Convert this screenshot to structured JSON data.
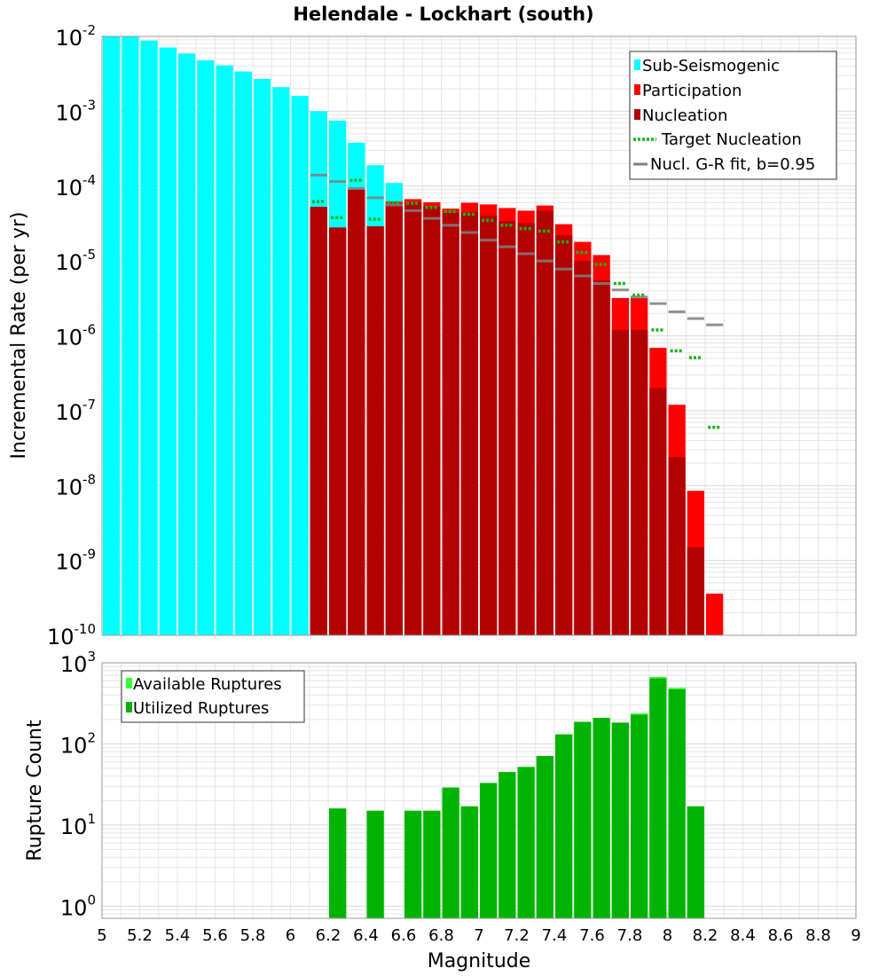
{
  "title": "Helendale - Lockhart (south)",
  "colors": {
    "sub_seismogenic": "#00ffff",
    "participation": "#ff0000",
    "nucleation": "#b30000",
    "target_nucleation": "#17b417",
    "gr_fit": "#7f7f7f",
    "available": "#33ff33",
    "utilized": "#00b300",
    "grid": "#e6e6e6"
  },
  "chart_data": [
    {
      "type": "bar",
      "title": "Helendale - Lockhart (south)",
      "ylabel": "Incremental Rate (per yr)",
      "xlabel": "",
      "xlim": [
        5,
        9
      ],
      "ylim_exp": [
        -10,
        -2
      ],
      "yscale": "log",
      "y_tick_exponents": [
        -10,
        -9,
        -8,
        -7,
        -6,
        -5,
        -4,
        -3,
        -2
      ],
      "legend_position": "top-right",
      "legend": [
        "Sub-Seismogenic",
        "Participation",
        "Nucleation",
        "Target Nucleation",
        "Nucl. G-R fit, b=0.95"
      ],
      "bin_width": 0.1,
      "series": [
        {
          "name": "Sub-Seismogenic",
          "style": "bar",
          "x": [
            5.05,
            5.15,
            5.25,
            5.35,
            5.45,
            5.55,
            5.65,
            5.75,
            5.85,
            5.95,
            6.05,
            6.15,
            6.25,
            6.35,
            6.45,
            6.55
          ],
          "values": [
            0.01,
            0.0099,
            0.0088,
            0.0071,
            0.0059,
            0.0048,
            0.0041,
            0.0034,
            0.0027,
            0.0021,
            0.0016,
            0.001,
            0.00075,
            0.00038,
            0.00019,
            0.00011
          ]
        },
        {
          "name": "Participation",
          "style": "bar",
          "x": [
            6.15,
            6.25,
            6.35,
            6.45,
            6.55,
            6.65,
            6.75,
            6.85,
            6.95,
            7.05,
            7.15,
            7.25,
            7.35,
            7.45,
            7.55,
            7.65,
            7.75,
            7.85,
            7.95,
            8.05,
            8.15,
            8.25
          ],
          "values": [
            5.3e-05,
            2.8e-05,
            9e-05,
            2.9e-05,
            6.2e-05,
            6.7e-05,
            6.1e-05,
            5e-05,
            6e-05,
            5.7e-05,
            5.1e-05,
            4.7e-05,
            5.5e-05,
            3.1e-05,
            1.8e-05,
            1.2e-05,
            3.2e-06,
            3.2e-06,
            6.9e-07,
            1.2e-07,
            8.5e-09,
            3.6e-10
          ]
        },
        {
          "name": "Nucleation",
          "style": "bar",
          "x": [
            6.15,
            6.25,
            6.35,
            6.45,
            6.55,
            6.65,
            6.75,
            6.85,
            6.95,
            7.05,
            7.15,
            7.25,
            7.35,
            7.45,
            7.55,
            7.65,
            7.75,
            7.85,
            7.95,
            8.05,
            8.15
          ],
          "values": [
            5.3e-05,
            2.8e-05,
            9e-05,
            2.9e-05,
            5.6e-05,
            6.1e-05,
            5.3e-05,
            4.4e-05,
            4.5e-05,
            4e-05,
            3.4e-05,
            3.2e-05,
            4.7e-05,
            2.2e-05,
            1e-05,
            5.5e-06,
            1.2e-06,
            1.2e-06,
            2e-07,
            2.4e-08,
            1.5e-09
          ]
        },
        {
          "name": "Target Nucleation",
          "style": "dotted-step",
          "x": [
            6.15,
            6.25,
            6.35,
            6.45,
            6.55,
            6.65,
            6.75,
            6.85,
            6.95,
            7.05,
            7.15,
            7.25,
            7.35,
            7.45,
            7.55,
            7.65,
            7.75,
            7.85,
            7.95,
            8.05,
            8.15,
            8.25
          ],
          "values": [
            6.2e-05,
            3.8e-05,
            0.00012,
            3.6e-05,
            6e-05,
            5.9e-05,
            5.2e-05,
            4.6e-05,
            4.2e-05,
            3.5e-05,
            3e-05,
            2.7e-05,
            2.5e-05,
            1.8e-05,
            1.3e-05,
            9e-06,
            5e-06,
            3.5e-06,
            1.2e-06,
            6.3e-07,
            5.1e-07,
            6e-08
          ]
        },
        {
          "name": "Nucl. G-R fit, b=0.95",
          "style": "step",
          "x": [
            6.15,
            6.25,
            6.35,
            6.45,
            6.55,
            6.65,
            6.75,
            6.85,
            6.95,
            7.05,
            7.15,
            7.25,
            7.35,
            7.45,
            7.55,
            7.65,
            7.75,
            7.85,
            7.95,
            8.05,
            8.15,
            8.25
          ],
          "values": [
            0.00014,
            0.000115,
            9.3e-05,
            7e-05,
            5.6e-05,
            4.7e-05,
            3.7e-05,
            3e-05,
            2.4e-05,
            1.9e-05,
            1.55e-05,
            1.25e-05,
            1e-05,
            7.8e-06,
            6.3e-06,
            5e-06,
            4.1e-06,
            3.3e-06,
            2.7e-06,
            2.1e-06,
            1.7e-06,
            1.4e-06
          ]
        }
      ]
    },
    {
      "type": "bar",
      "title": "",
      "xlabel": "Magnitude",
      "ylabel": "Rupture Count",
      "xlim": [
        5,
        9
      ],
      "ylim_exp": [
        -0.15,
        3
      ],
      "yscale": "log",
      "y_tick_exponents": [
        0,
        1,
        2,
        3
      ],
      "x_ticks": [
        "5",
        "5.2",
        "5.4",
        "5.6",
        "5.8",
        "6",
        "6.2",
        "6.4",
        "6.6",
        "6.8",
        "7",
        "7.2",
        "7.4",
        "7.6",
        "7.8",
        "8",
        "8.2",
        "8.4",
        "8.6",
        "8.8",
        "9"
      ],
      "legend_position": "top-left",
      "legend": [
        "Available Ruptures",
        "Utilized Ruptures"
      ],
      "bin_width": 0.1,
      "series": [
        {
          "name": "Available Ruptures",
          "x": [
            6.25,
            6.45,
            6.65,
            6.75,
            6.85,
            6.95,
            7.05,
            7.15,
            7.25,
            7.35,
            7.45,
            7.55,
            7.65,
            7.75,
            7.85,
            7.95,
            8.05,
            8.15
          ],
          "values": [
            16,
            15,
            15,
            15,
            29,
            17,
            33,
            45,
            52,
            71,
            131,
            187,
            209,
            183,
            238,
            670,
            490,
            17
          ]
        },
        {
          "name": "Utilized Ruptures",
          "x": [
            6.25,
            6.45,
            6.65,
            6.75,
            6.85,
            6.95,
            7.05,
            7.15,
            7.25,
            7.35,
            7.45,
            7.55,
            7.65,
            7.75,
            7.85,
            7.95,
            8.05,
            8.15
          ],
          "values": [
            16,
            15,
            15,
            15,
            29,
            17,
            33,
            45,
            52,
            71,
            131,
            187,
            209,
            183,
            228,
            640,
            470,
            17
          ]
        }
      ]
    }
  ]
}
